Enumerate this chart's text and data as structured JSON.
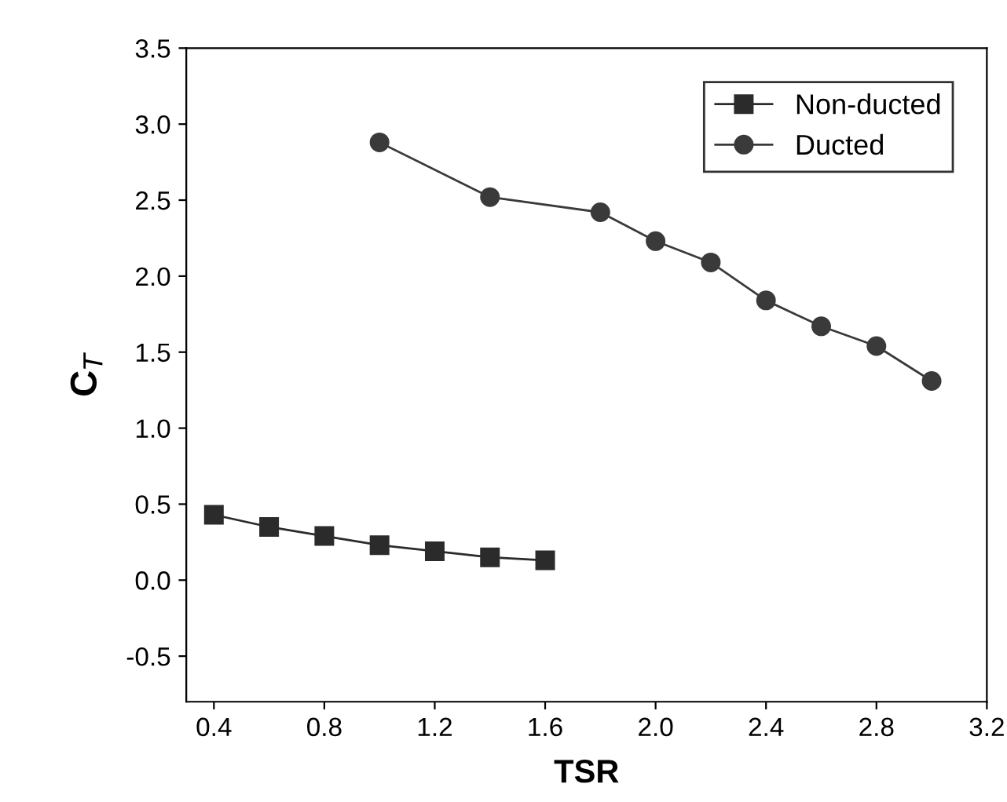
{
  "chart_data": {
    "type": "line",
    "xlabel": "TSR",
    "ylabel": "C$_{T}$",
    "xlim": [
      0.3,
      3.2
    ],
    "ylim": [
      -0.8,
      3.5
    ],
    "xticks": [
      {
        "value": 0.4,
        "label": "0.4"
      },
      {
        "value": 0.8,
        "label": "0.8"
      },
      {
        "value": 1.2,
        "label": "1.2"
      },
      {
        "value": 1.6,
        "label": "1.6"
      },
      {
        "value": 2.0,
        "label": "2.0"
      },
      {
        "value": 2.4,
        "label": "2.4"
      },
      {
        "value": 2.8,
        "label": "2.8"
      },
      {
        "value": 3.2,
        "label": "3.2"
      }
    ],
    "yticks": [
      {
        "value": -0.5,
        "label": "-0.5"
      },
      {
        "value": 0.0,
        "label": "0.0"
      },
      {
        "value": 0.5,
        "label": "0.5"
      },
      {
        "value": 1.0,
        "label": "1.0"
      },
      {
        "value": 1.5,
        "label": "1.5"
      },
      {
        "value": 2.0,
        "label": "2.0"
      },
      {
        "value": 2.5,
        "label": "2.5"
      },
      {
        "value": 3.0,
        "label": "3.0"
      },
      {
        "value": 3.5,
        "label": "3.5"
      }
    ],
    "legend": "top right",
    "grid": false,
    "series": [
      {
        "name": "Non-ducted",
        "color": "#2b2b2b",
        "marker": "square",
        "x": [
          0.4,
          0.6,
          0.8,
          1.0,
          1.2,
          1.4,
          1.6
        ],
        "values": [
          0.43,
          0.35,
          0.29,
          0.23,
          0.19,
          0.15,
          0.13
        ]
      },
      {
        "name": "Ducted",
        "color": "#3a3a3a",
        "marker": "circle",
        "x": [
          1.0,
          1.4,
          1.8,
          2.0,
          2.2,
          2.4,
          2.6,
          2.8,
          3.0
        ],
        "values": [
          2.88,
          2.52,
          2.42,
          2.23,
          2.09,
          1.84,
          1.67,
          1.54,
          1.31
        ]
      }
    ]
  }
}
